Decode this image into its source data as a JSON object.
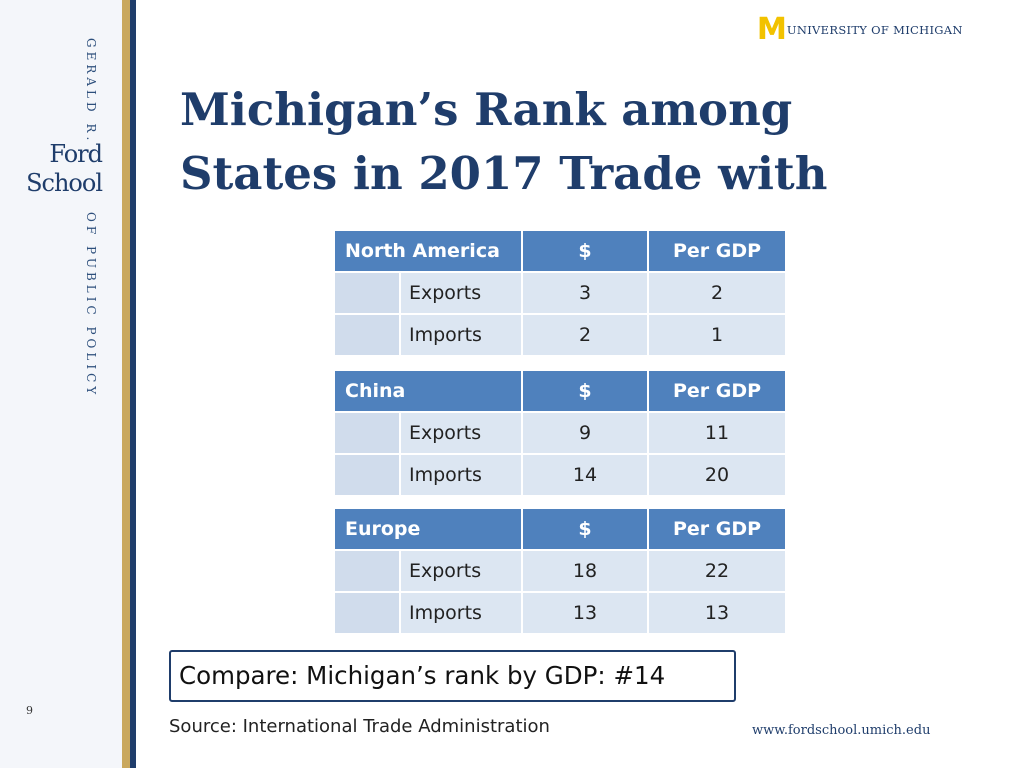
{
  "sidebar": {
    "top_text": "GERALD R.",
    "logo_line1": "Ford",
    "logo_line2": "School",
    "bottom_text": "OF PUBLIC POLICY"
  },
  "header": {
    "logo_mark": "M",
    "university_name": "UNIVERSITY OF MICHIGAN"
  },
  "title": {
    "line1": "Michigan’s Rank among",
    "line2": "States in 2017 Trade with"
  },
  "tables": [
    {
      "region": "North America",
      "col_dollar": "$",
      "col_gdp": "Per GDP",
      "rows": [
        {
          "label": "Exports",
          "dollar": "3",
          "gdp": "2"
        },
        {
          "label": "Imports",
          "dollar": "2",
          "gdp": "1"
        }
      ]
    },
    {
      "region": "China",
      "col_dollar": "$",
      "col_gdp": "Per GDP",
      "rows": [
        {
          "label": "Exports",
          "dollar": "9",
          "gdp": "11"
        },
        {
          "label": "Imports",
          "dollar": "14",
          "gdp": "20"
        }
      ]
    },
    {
      "region": "Europe",
      "col_dollar": "$",
      "col_gdp": "Per GDP",
      "rows": [
        {
          "label": "Exports",
          "dollar": "18",
          "gdp": "22"
        },
        {
          "label": "Imports",
          "dollar": "13",
          "gdp": "13"
        }
      ]
    }
  ],
  "compare_text": "Compare:  Michigan’s rank by GDP:  #14",
  "source_text": "Source:  International Trade Administration",
  "url": "www.fordschool.umich.edu",
  "page_number": "9",
  "colors": {
    "navy": "#1f3d6b",
    "table_header": "#4f81bd",
    "table_row": "#dce6f2",
    "gold": "#c9a85e",
    "maize": "#f2c200"
  }
}
